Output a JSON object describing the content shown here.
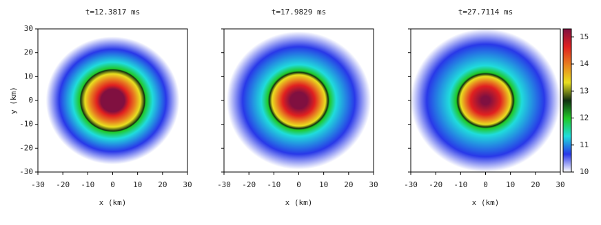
{
  "chart_data": [
    {
      "type": "heatmap",
      "title": "t=12.3817 ms",
      "xlabel": "x (km)",
      "ylabel": "y (km)",
      "xlim": [
        -30,
        30
      ],
      "ylim": [
        -30,
        30
      ],
      "xticks": [
        -30,
        -20,
        -10,
        0,
        10,
        20,
        30
      ],
      "yticks": [
        -30,
        -20,
        -10,
        0,
        10,
        20,
        30
      ],
      "ytick_labels": true
    },
    {
      "type": "heatmap",
      "title": "t=17.9829 ms",
      "xlabel": "x (km)",
      "xlim": [
        -30,
        30
      ],
      "ylim": [
        -30,
        30
      ],
      "xticks": [
        -30,
        -20,
        -10,
        0,
        10,
        20,
        30
      ],
      "yticks": [
        -30,
        -20,
        -10,
        0,
        10,
        20,
        30
      ],
      "ytick_labels": false
    },
    {
      "type": "heatmap",
      "title": "t=27.7114 ms",
      "xlabel": "x (km)",
      "xlim": [
        -30,
        30
      ],
      "ylim": [
        -30,
        30
      ],
      "xticks": [
        -30,
        -20,
        -10,
        0,
        10,
        20,
        30
      ],
      "yticks": [
        -30,
        -20,
        -10,
        0,
        10,
        20,
        30
      ],
      "ytick_labels": false,
      "colorbar": {
        "clim": [
          10,
          15.3
        ],
        "ticks": [
          10,
          11,
          12,
          13,
          14,
          15
        ],
        "colormap": [
          "#ffffff",
          "#2838e8",
          "#20dcdc",
          "#20c828",
          "#103010",
          "#e8e020",
          "#e88020",
          "#e02020",
          "#801040"
        ]
      }
    }
  ]
}
